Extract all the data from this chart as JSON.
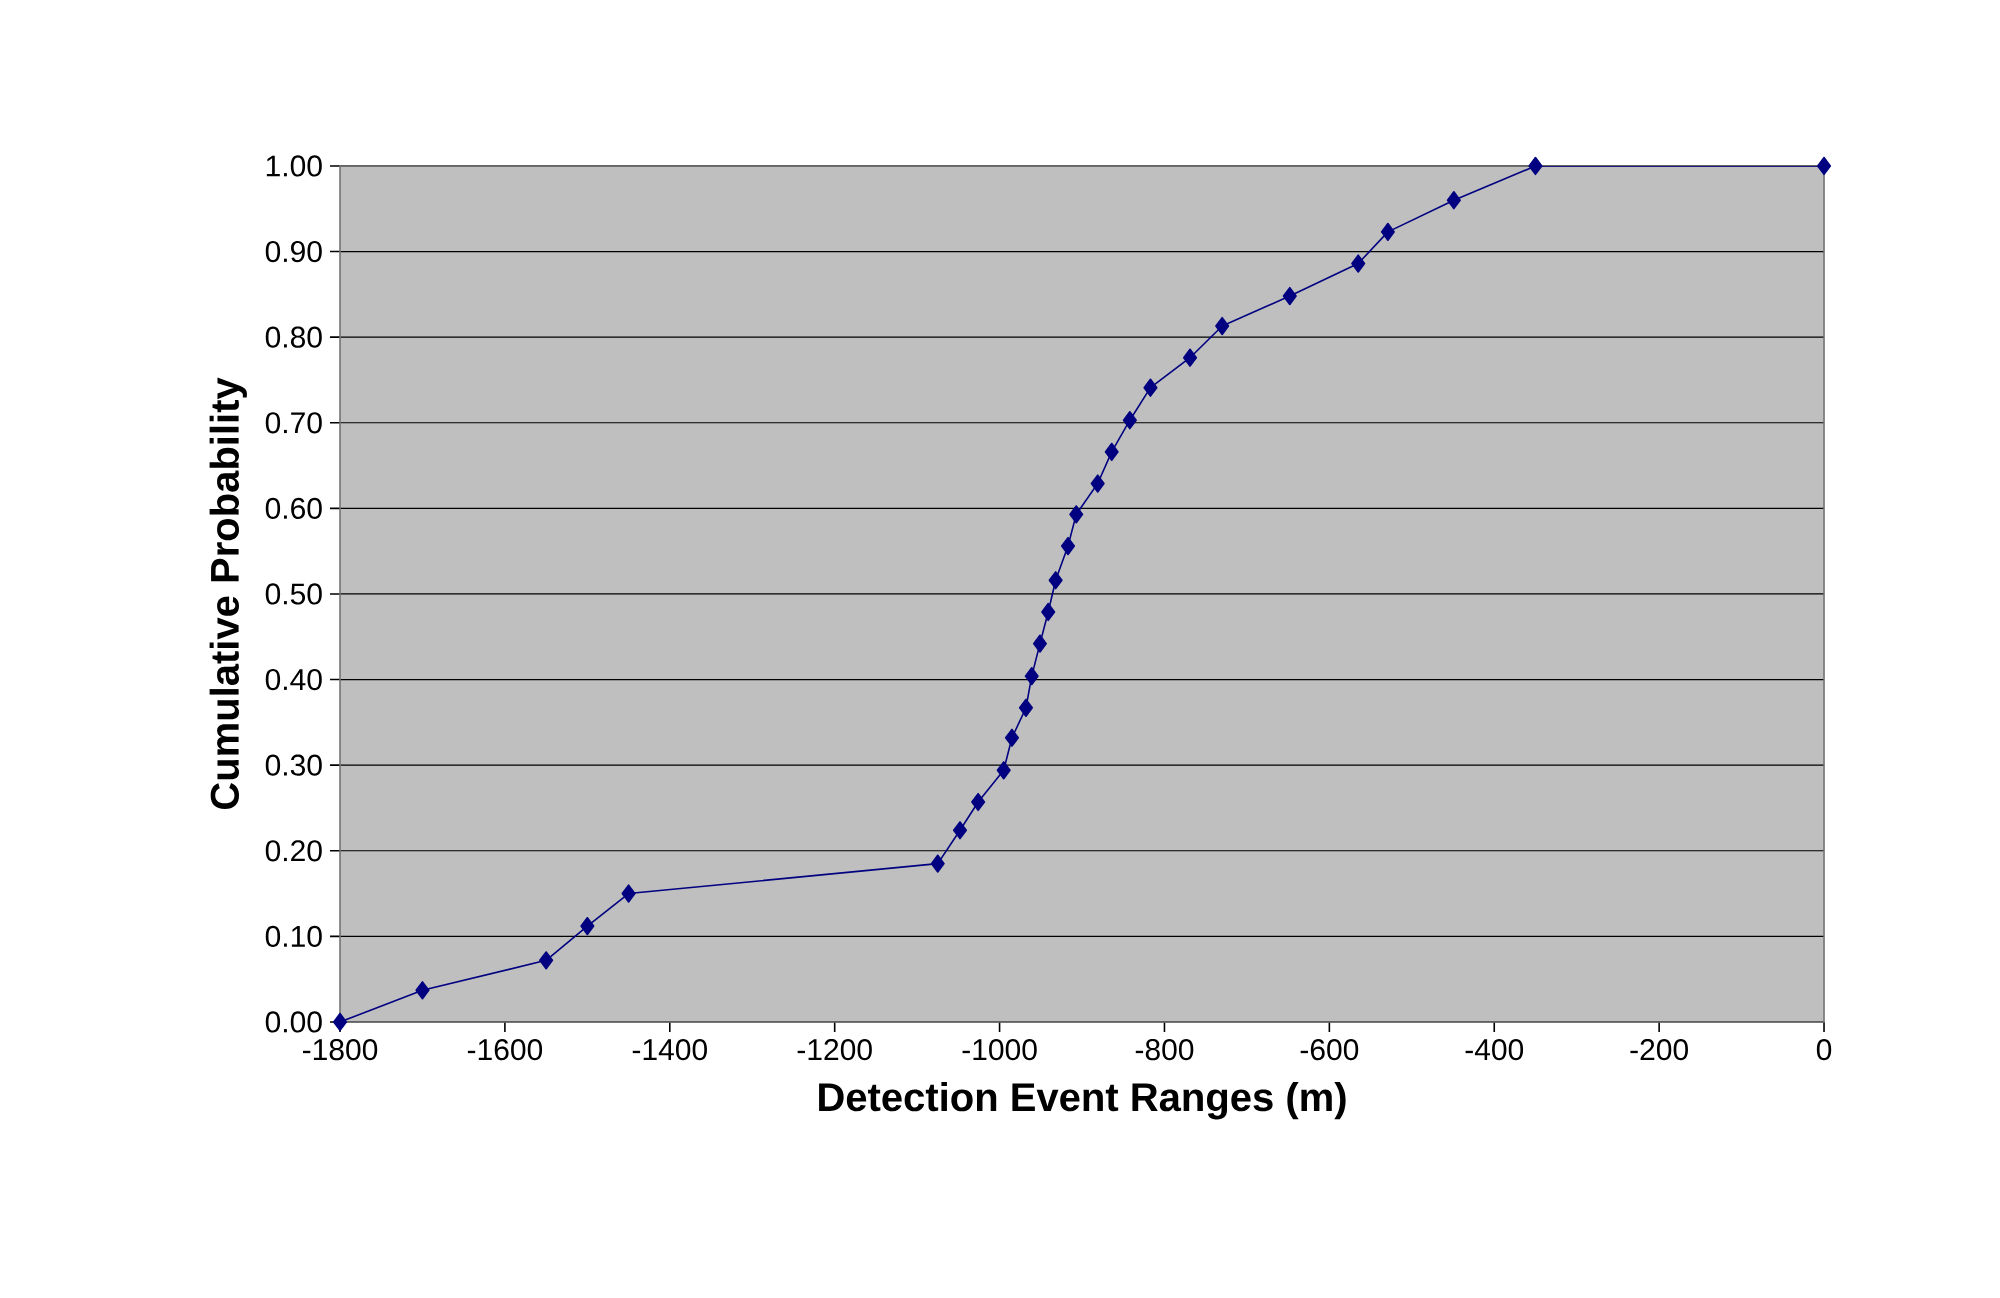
{
  "chart_data": {
    "type": "line",
    "xlabel": "Detection Event Ranges (m)",
    "ylabel": "Cumulative Probability",
    "x": [
      -1800,
      -1700,
      -1550,
      -1500,
      -1450,
      -1075,
      -1048,
      -1026,
      -995,
      -985,
      -968,
      -961,
      -951,
      -941,
      -932,
      -917,
      -907,
      -881,
      -864,
      -842,
      -817,
      -769,
      -730,
      -648,
      -565,
      -529,
      -449,
      -350,
      0
    ],
    "series": [
      {
        "color": "#000080",
        "values": [
          0.0,
          0.037,
          0.072,
          0.112,
          0.15,
          0.185,
          0.224,
          0.257,
          0.294,
          0.332,
          0.367,
          0.404,
          0.442,
          0.479,
          0.516,
          0.556,
          0.593,
          0.629,
          0.666,
          0.703,
          0.741,
          0.776,
          0.813,
          0.848,
          0.886,
          0.923,
          0.96,
          1.0,
          1.0
        ]
      }
    ],
    "xlim": [
      -1800,
      0
    ],
    "xticks": [
      -1800,
      -1600,
      -1400,
      -1200,
      -1000,
      -800,
      -600,
      -400,
      -200,
      0
    ],
    "ylim": [
      0,
      1
    ],
    "yticks": [
      {
        "value": 0,
        "label": "0.00"
      },
      {
        "value": 0.1,
        "label": "0.10"
      },
      {
        "value": 0.2,
        "label": "0.20"
      },
      {
        "value": 0.3,
        "label": "0.30"
      },
      {
        "value": 0.4,
        "label": "0.40"
      },
      {
        "value": 0.5,
        "label": "0.50"
      },
      {
        "value": 0.6,
        "label": "0.60"
      },
      {
        "value": 0.7,
        "label": "0.70"
      },
      {
        "value": 0.8,
        "label": "0.80"
      },
      {
        "value": 0.9,
        "label": "0.90"
      },
      {
        "value": 1,
        "label": "1.00"
      }
    ],
    "grid": "y",
    "marker": "diamond",
    "line_style": "solid"
  }
}
